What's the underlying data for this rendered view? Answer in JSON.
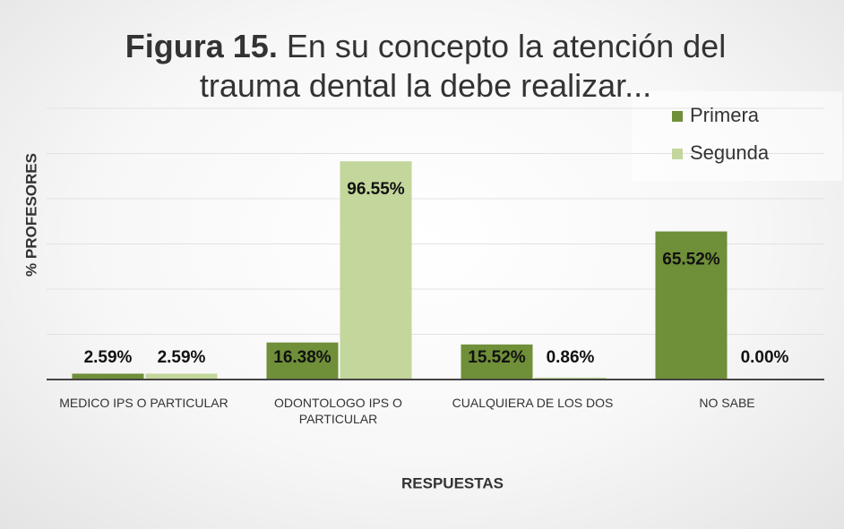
{
  "chart_data": {
    "type": "bar",
    "figure_label": "Figura 15.",
    "title": "En su concepto la atención del trauma dental la debe realizar...",
    "xlabel": "RESPUESTAS",
    "ylabel": "% PROFESORES",
    "categories": [
      "MEDICO IPS O PARTICULAR",
      "ODONTOLOGO IPS O PARTICULAR",
      "CUALQUIERA DE LOS DOS",
      "NO SABE"
    ],
    "series": [
      {
        "name": "Primera",
        "color": "#6f8f38",
        "values": [
          2.59,
          16.38,
          15.52,
          65.52
        ],
        "value_labels": [
          "2.59%",
          "16.38%",
          "15.52%",
          "65.52%"
        ]
      },
      {
        "name": "Segunda",
        "color": "#c3d69b",
        "values": [
          2.59,
          96.55,
          0.86,
          0.0
        ],
        "value_labels": [
          "2.59%",
          "96.55%",
          "0.86%",
          "0.00%"
        ]
      }
    ],
    "ylim": [
      0,
      120
    ],
    "yticks": [
      0,
      20,
      40,
      60,
      80,
      100,
      120
    ],
    "grid": true,
    "legend": "top-right"
  }
}
